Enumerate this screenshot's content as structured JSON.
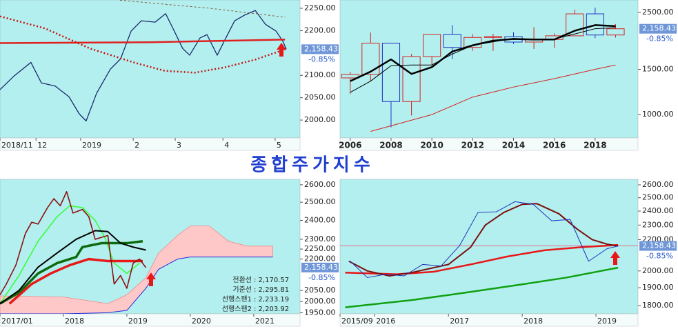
{
  "title": "종합주가지수",
  "last_price": {
    "value": 2158.43,
    "label": "2,158.43"
  },
  "change": "-0.85%",
  "chart_data": [
    {
      "type": "line",
      "log": false,
      "xlim": [
        0,
        100
      ],
      "ylim": [
        1960,
        2268.5
      ],
      "yticks": [
        {
          "value": 2000,
          "label": "2000.00"
        },
        {
          "value": 2050,
          "label": "2050.00"
        },
        {
          "value": 2100,
          "label": "2100.00"
        },
        {
          "value": 2200,
          "label": "2200.00"
        },
        {
          "value": 2250,
          "label": "2250.00"
        }
      ],
      "xticks": [
        {
          "value": 0,
          "label": "2018/11"
        },
        {
          "value": 12,
          "label": "12"
        },
        {
          "value": 26.9,
          "label": "2019"
        },
        {
          "value": 44.4,
          "label": "2"
        },
        {
          "value": 58.4,
          "label": "3"
        },
        {
          "value": 74.3,
          "label": "4"
        },
        {
          "value": 91.7,
          "label": "5"
        }
      ],
      "series": [
        {
          "color": "#1a2a6c",
          "width": 1.3,
          "x": [
            0,
            4.6,
            10.3,
            13.8,
            18.4,
            23,
            26.4,
            28.7,
            32.2,
            36.8,
            40.2,
            43.7,
            47.1,
            51.7,
            55.2,
            57.5,
            60.9,
            63.2,
            66.7,
            69,
            72.4,
            74.7,
            78.2,
            81.6,
            85.1,
            88.5,
            92,
            94.3,
            95.4
          ],
          "values": [
            2068,
            2098,
            2129,
            2083,
            2076,
            2052,
            2014,
            1998,
            2060,
            2114,
            2137,
            2199,
            2222,
            2219,
            2238,
            2207,
            2160,
            2145,
            2184,
            2191,
            2145,
            2176,
            2222,
            2235,
            2245,
            2214,
            2199,
            2176,
            2158.43
          ]
        },
        {
          "color": "#e02020",
          "width": 2.5,
          "x": [
            0,
            50,
            95
          ],
          "values": [
            2172,
            2174,
            2180
          ]
        },
        {
          "color": "#c81010",
          "width": 2.5,
          "dash": "2 3",
          "x": [
            0,
            15,
            30,
            45,
            55,
            65,
            75,
            85,
            95
          ],
          "values": [
            2232,
            2205,
            2160,
            2128,
            2110,
            2106,
            2118,
            2135,
            2158
          ]
        },
        {
          "color": "#8a5a3a",
          "width": 1,
          "dash": "3 3",
          "x": [
            40,
            50,
            70,
            85,
            95
          ],
          "values": [
            2268,
            2262,
            2250,
            2238,
            2230
          ]
        }
      ]
    },
    {
      "type": "candlestick",
      "log": true,
      "xlim": [
        2005.5,
        2020.1
      ],
      "ylim": [
        811,
        2793
      ],
      "yticks": [
        {
          "value": 1000,
          "label": "1000.00"
        },
        {
          "value": 1500,
          "label": "1500.00"
        },
        {
          "value": 2500,
          "label": "2500.00"
        }
      ],
      "xticks": [
        2006,
        2008,
        2010,
        2012,
        2014,
        2016,
        2018
      ],
      "up_color": "#d82020",
      "down_color": "#2030c0",
      "x": [
        2006,
        2007,
        2008,
        2009,
        2010,
        2011,
        2012,
        2013,
        2014,
        2015,
        2016,
        2017,
        2018,
        2019
      ],
      "open": [
        1389,
        1435,
        1897,
        1124,
        1682,
        2051,
        1826,
        1997,
        2011,
        1916,
        1961,
        2026,
        2467,
        2041
      ],
      "high": [
        1467,
        2085,
        1901,
        1723,
        2052,
        2231,
        2057,
        2063,
        2093,
        2189,
        2073,
        2561,
        2607,
        2252
      ],
      "low": [
        1203,
        1355,
        892,
        992,
        1552,
        1644,
        1770,
        1770,
        1881,
        1801,
        1817,
        2026,
        1985,
        1994
      ],
      "close": [
        1434,
        1897,
        1124,
        1682,
        2051,
        1826,
        1997,
        2011,
        1916,
        1961,
        2026,
        2467,
        2041,
        2158
      ],
      "series": [
        {
          "color": "#000000",
          "width": 2.5,
          "x": [
            2006,
            2007,
            2008,
            2009,
            2010,
            2011,
            2012,
            2013,
            2014,
            2015,
            2016,
            2017,
            2018,
            2019
          ],
          "values": [
            1350,
            1470,
            1640,
            1440,
            1530,
            1760,
            1860,
            1940,
            1970,
            1960,
            1960,
            2120,
            2230,
            2210
          ]
        },
        {
          "color": "#000000",
          "width": 1,
          "x": [
            2006,
            2007,
            2008,
            2009,
            2010,
            2011,
            2012,
            2013,
            2014,
            2015,
            2016,
            2017,
            2018,
            2019
          ],
          "values": [
            1220,
            1350,
            1550,
            1560,
            1560,
            1720,
            1860,
            1920,
            1980,
            1950,
            1970,
            2060,
            2160,
            2180
          ]
        },
        {
          "color": "#d82020",
          "width": 1,
          "x": [
            2007,
            2010,
            2012,
            2014,
            2016,
            2018,
            2019
          ],
          "values": [
            860,
            1000,
            1170,
            1280,
            1380,
            1500,
            1560
          ]
        }
      ]
    },
    {
      "type": "line",
      "log": true,
      "xlim": [
        2017.0,
        2021.73
      ],
      "ylim": [
        1945,
        2632
      ],
      "yticks": [
        {
          "value": 1950,
          "label": "1950.00"
        },
        {
          "value": 2000,
          "label": "2000.00"
        },
        {
          "value": 2050,
          "label": "2050.00"
        },
        {
          "value": 2200,
          "label": "2200.00"
        },
        {
          "value": 2250,
          "label": "2250.00"
        },
        {
          "value": 2300,
          "label": "2300.00"
        },
        {
          "value": 2400,
          "label": "2400.00"
        },
        {
          "value": 2500,
          "label": "2500.00"
        },
        {
          "value": 2600,
          "label": "2600.00"
        }
      ],
      "xticks": [
        {
          "value": 2017,
          "label": "2017/01"
        },
        2018,
        2019,
        2020,
        2021
      ],
      "cloud": {
        "color": "#ffc8c8",
        "line_color": "#2030e0",
        "x": [
          2017.0,
          2018.0,
          2018.7,
          2019.0,
          2019.3,
          2019.5,
          2019.8,
          2020.0,
          2020.3,
          2020.6,
          2020.9,
          2021.3
        ],
        "upper": [
          2025,
          2020,
          1990,
          2030,
          2110,
          2230,
          2320,
          2370,
          2370,
          2290,
          2265,
          2265
        ],
        "lower": [
          1945,
          1945,
          1950,
          1960,
          2060,
          2150,
          2200,
          2210,
          2210,
          2210,
          2210,
          2210
        ]
      },
      "series": [
        {
          "color": "#32ff32",
          "width": 1.5,
          "x": [
            2017.0,
            2017.3,
            2017.6,
            2017.9,
            2018.1,
            2018.3,
            2018.5,
            2018.65,
            2018.8,
            2019.0,
            2019.2
          ],
          "values": [
            1990,
            2120,
            2290,
            2420,
            2480,
            2470,
            2400,
            2310,
            2180,
            2130,
            2180
          ]
        },
        {
          "color": "#0d6a0d",
          "width": 3.5,
          "x": [
            2017.0,
            2017.3,
            2017.6,
            2017.9,
            2018.2,
            2018.3,
            2018.6,
            2019.0,
            2019.25
          ],
          "values": [
            1990,
            2040,
            2130,
            2180,
            2210,
            2260,
            2280,
            2280,
            2290
          ]
        },
        {
          "color": "#000000",
          "width": 2,
          "x": [
            2017.0,
            2017.3,
            2017.6,
            2017.9,
            2018.2,
            2018.5,
            2018.7,
            2018.9,
            2019.1,
            2019.3
          ],
          "values": [
            1990,
            2050,
            2160,
            2230,
            2300,
            2345,
            2340,
            2280,
            2260,
            2245
          ]
        },
        {
          "color": "#e81818",
          "width": 3.5,
          "x": [
            2017.15,
            2017.5,
            2017.8,
            2018.1,
            2018.4,
            2018.7,
            2019.0,
            2019.25
          ],
          "values": [
            1990,
            2080,
            2130,
            2170,
            2200,
            2190,
            2190,
            2190
          ]
        },
        {
          "color": "#8b1010",
          "width": 1.6,
          "x": [
            2017.0,
            2017.1,
            2017.25,
            2017.4,
            2017.5,
            2017.6,
            2017.75,
            2017.85,
            2017.95,
            2018.05,
            2018.15,
            2018.3,
            2018.4,
            2018.5,
            2018.6,
            2018.7,
            2018.8,
            2018.9,
            2019.0,
            2019.1,
            2019.2,
            2019.3
          ],
          "values": [
            2030,
            2080,
            2170,
            2330,
            2390,
            2380,
            2470,
            2520,
            2480,
            2560,
            2440,
            2460,
            2420,
            2300,
            2310,
            2320,
            2080,
            2120,
            2060,
            2180,
            2200,
            2158
          ]
        }
      ],
      "annotations": [
        {
          "label": "전환선",
          "value": ": 2,170.57"
        },
        {
          "label": "기준선",
          "value": ": 2,295.81"
        },
        {
          "label": "선행스팬1",
          "value": ": 2,233.19"
        },
        {
          "label": "선행스팬2",
          "value": ": 2,203.92"
        }
      ]
    },
    {
      "type": "line",
      "log": true,
      "xlim": [
        2015.53,
        2019.57
      ],
      "ylim": [
        1755,
        2644
      ],
      "price_line": true,
      "yticks": [
        {
          "value": 1800,
          "label": "1800.00"
        },
        {
          "value": 1900,
          "label": "1900.00"
        },
        {
          "value": 2000,
          "label": "2000.00"
        },
        {
          "value": 2200,
          "label": "2200.00"
        },
        {
          "value": 2300,
          "label": "2300.00"
        },
        {
          "value": 2400,
          "label": "2400.00"
        },
        {
          "value": 2500,
          "label": "2500.00"
        },
        {
          "value": 2600,
          "label": "2600.00"
        }
      ],
      "xticks": [
        {
          "value": 2015.53,
          "label": "2015/09"
        },
        2016,
        2017,
        2018,
        2019
      ],
      "series": [
        {
          "color": "#10a010",
          "width": 2.5,
          "x": [
            2015.6,
            2016.5,
            2017.2,
            2018.0,
            2018.6,
            2019.3
          ],
          "values": [
            1790,
            1830,
            1870,
            1920,
            1960,
            2020
          ]
        },
        {
          "color": "#e81818",
          "width": 2.5,
          "x": [
            2015.6,
            2016.3,
            2016.8,
            2017.3,
            2017.8,
            2018.3,
            2018.8,
            2019.3
          ],
          "values": [
            1990,
            1980,
            1995,
            2040,
            2090,
            2130,
            2150,
            2165
          ]
        },
        {
          "color": "#7a1010",
          "width": 2,
          "x": [
            2015.65,
            2015.9,
            2016.2,
            2016.5,
            2016.8,
            2017.0,
            2017.3,
            2017.5,
            2017.75,
            2018.0,
            2018.2,
            2018.5,
            2018.75,
            2018.95,
            2019.15,
            2019.3
          ],
          "values": [
            2060,
            2000,
            1970,
            1990,
            2020,
            2040,
            2150,
            2300,
            2390,
            2450,
            2455,
            2380,
            2270,
            2200,
            2170,
            2158
          ]
        },
        {
          "color": "#2030c0",
          "width": 1,
          "x": [
            2015.67,
            2015.9,
            2016.15,
            2016.4,
            2016.65,
            2016.9,
            2017.15,
            2017.4,
            2017.65,
            2017.9,
            2018.15,
            2018.4,
            2018.65,
            2018.9,
            2019.15,
            2019.3
          ],
          "values": [
            2060,
            1960,
            1980,
            1970,
            2040,
            2030,
            2160,
            2390,
            2395,
            2470,
            2450,
            2330,
            2340,
            2060,
            2140,
            2158
          ]
        }
      ]
    }
  ]
}
